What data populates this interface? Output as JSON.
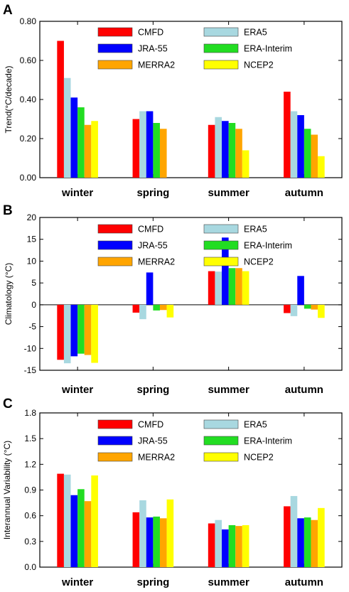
{
  "chart_data": [
    {
      "panel": "A",
      "type": "bar",
      "ylabel": "Trend(°C/decade)",
      "ylim": [
        0,
        0.8
      ],
      "yticks": [
        "0.00",
        "0.20",
        "0.40",
        "0.60",
        "0.80"
      ],
      "categories": [
        "winter",
        "spring",
        "summer",
        "autumn"
      ],
      "legend": "top",
      "series": [
        {
          "name": "CMFD",
          "color": "#ff0000",
          "values": [
            0.7,
            0.3,
            0.27,
            0.44
          ]
        },
        {
          "name": "ERA5",
          "color": "#a8d8e0",
          "values": [
            0.51,
            0.34,
            0.31,
            0.34
          ]
        },
        {
          "name": "JRA-55",
          "color": "#0000ff",
          "values": [
            0.41,
            0.34,
            0.29,
            0.32
          ]
        },
        {
          "name": "ERA-Interim",
          "color": "#22dd22",
          "values": [
            0.36,
            0.28,
            0.28,
            0.25
          ]
        },
        {
          "name": "MERRA2",
          "color": "#ffa500",
          "values": [
            0.27,
            0.25,
            0.25,
            0.22
          ]
        },
        {
          "name": "NCEP2",
          "color": "#ffff00",
          "values": [
            0.29,
            0.0,
            0.14,
            0.11
          ]
        }
      ]
    },
    {
      "panel": "B",
      "type": "bar",
      "ylabel": "Climatology (°C)",
      "ylim": [
        -15,
        20
      ],
      "yticks": [
        "-15",
        "-10",
        "-5",
        "0",
        "5",
        "10",
        "15",
        "20"
      ],
      "categories": [
        "winter",
        "spring",
        "summer",
        "autumn"
      ],
      "legend": "top",
      "series": [
        {
          "name": "CMFD",
          "color": "#ff0000",
          "values": [
            -12.6,
            -1.8,
            7.7,
            -1.9
          ]
        },
        {
          "name": "ERA5",
          "color": "#a8d8e0",
          "values": [
            -13.4,
            -3.3,
            7.6,
            -2.6
          ]
        },
        {
          "name": "JRA-55",
          "color": "#0000ff",
          "values": [
            -11.8,
            7.4,
            15.4,
            6.6
          ]
        },
        {
          "name": "ERA-Interim",
          "color": "#22dd22",
          "values": [
            -11.2,
            -1.3,
            8.4,
            -0.9
          ]
        },
        {
          "name": "MERRA2",
          "color": "#ffa500",
          "values": [
            -11.5,
            -1.2,
            8.4,
            -1.1
          ]
        },
        {
          "name": "NCEP2",
          "color": "#ffff00",
          "values": [
            -13.3,
            -2.9,
            7.7,
            -3.0
          ]
        }
      ]
    },
    {
      "panel": "C",
      "type": "bar",
      "ylabel": "Interannual Variability (°C)",
      "ylim": [
        0,
        1.8
      ],
      "yticks": [
        "0.0",
        "0.3",
        "0.6",
        "0.9",
        "1.2",
        "1.5",
        "1.8"
      ],
      "categories": [
        "winter",
        "spring",
        "summer",
        "autumn"
      ],
      "legend": "top",
      "series": [
        {
          "name": "CMFD",
          "color": "#ff0000",
          "values": [
            1.09,
            0.64,
            0.51,
            0.71
          ]
        },
        {
          "name": "ERA5",
          "color": "#a8d8e0",
          "values": [
            1.08,
            0.78,
            0.55,
            0.83
          ]
        },
        {
          "name": "JRA-55",
          "color": "#0000ff",
          "values": [
            0.84,
            0.58,
            0.44,
            0.57
          ]
        },
        {
          "name": "ERA-Interim",
          "color": "#22dd22",
          "values": [
            0.91,
            0.59,
            0.49,
            0.58
          ]
        },
        {
          "name": "MERRA2",
          "color": "#ffa500",
          "values": [
            0.77,
            0.57,
            0.48,
            0.55
          ]
        },
        {
          "name": "NCEP2",
          "color": "#ffff00",
          "values": [
            1.07,
            0.79,
            0.49,
            0.69
          ]
        }
      ]
    }
  ]
}
